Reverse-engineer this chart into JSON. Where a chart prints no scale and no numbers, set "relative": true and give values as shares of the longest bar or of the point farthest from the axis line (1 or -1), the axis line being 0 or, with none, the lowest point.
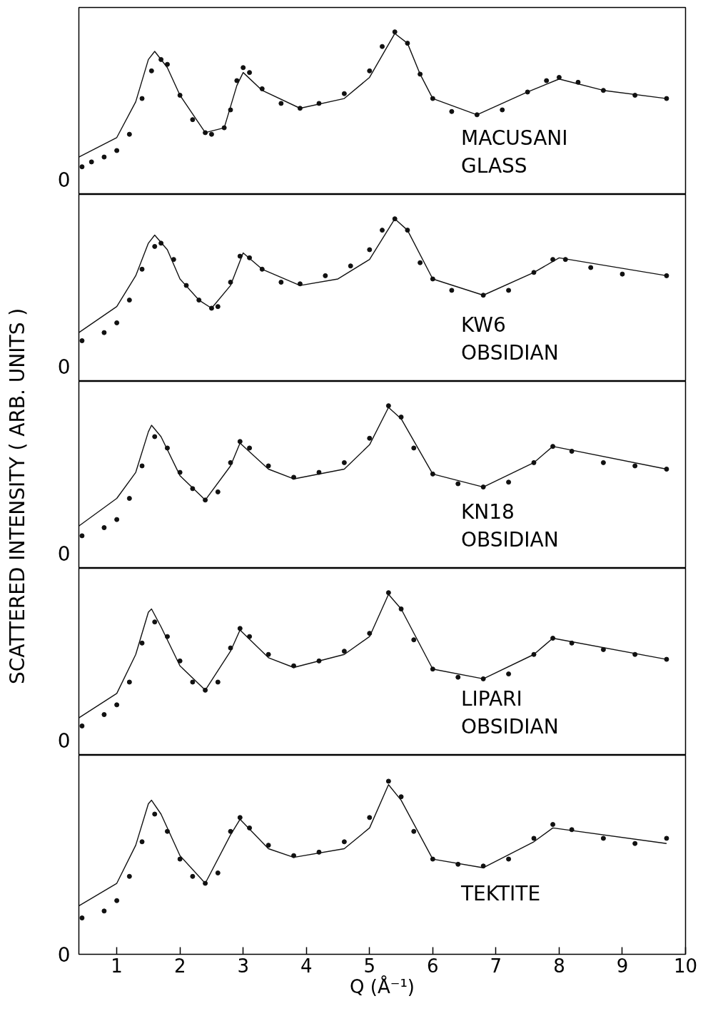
{
  "chart_data": [
    {
      "type": "scatter",
      "relative": true,
      "marker": "circle",
      "xlim": [
        0.4,
        10
      ],
      "xticks": [
        1,
        2,
        3,
        4,
        5,
        6,
        7,
        8,
        9,
        10
      ],
      "tick_labels": false,
      "annotations": [
        "0",
        "MACUSANI\nGLASS"
      ],
      "series": [
        {
          "color": "#111111",
          "x": [
            0.45,
            0.6,
            0.8,
            1.0,
            1.2,
            1.4,
            1.55,
            1.7,
            1.8,
            2.0,
            2.2,
            2.4,
            2.5,
            2.7,
            2.8,
            2.9,
            3.0,
            3.1,
            3.3,
            3.6,
            3.9,
            4.2,
            4.6,
            5.0,
            5.2,
            5.4,
            5.6,
            5.8,
            6.0,
            6.3,
            6.7,
            7.1,
            7.5,
            7.8,
            8.0,
            8.3,
            8.7,
            9.2,
            9.7
          ],
          "values": [
            0.17,
            0.2,
            0.23,
            0.27,
            0.37,
            0.59,
            0.76,
            0.83,
            0.8,
            0.61,
            0.46,
            0.38,
            0.37,
            0.41,
            0.52,
            0.7,
            0.78,
            0.75,
            0.65,
            0.56,
            0.53,
            0.56,
            0.62,
            0.76,
            0.91,
            1.0,
            0.93,
            0.74,
            0.59,
            0.51,
            0.49,
            0.52,
            0.63,
            0.7,
            0.72,
            0.69,
            0.64,
            0.61,
            0.59
          ]
        },
        {
          "type": "line",
          "marker": "none",
          "color": "#111111",
          "x": [
            0.4,
            1.0,
            1.3,
            1.5,
            1.6,
            1.8,
            2.0,
            2.4,
            2.7,
            2.9,
            3.0,
            3.3,
            3.9,
            4.6,
            5.0,
            5.4,
            5.6,
            5.8,
            6.0,
            6.7,
            7.5,
            8.0,
            8.7,
            9.7
          ],
          "values": [
            0.23,
            0.35,
            0.57,
            0.83,
            0.88,
            0.78,
            0.61,
            0.38,
            0.41,
            0.67,
            0.75,
            0.64,
            0.53,
            0.59,
            0.72,
            0.99,
            0.93,
            0.74,
            0.59,
            0.49,
            0.63,
            0.71,
            0.64,
            0.59
          ]
        }
      ]
    },
    {
      "type": "scatter",
      "relative": true,
      "marker": "circle",
      "xlim": [
        0.4,
        10
      ],
      "xticks": [
        1,
        2,
        3,
        4,
        5,
        6,
        7,
        8,
        9,
        10
      ],
      "tick_labels": false,
      "annotations": [
        "0",
        "KW6\nOBSIDIAN"
      ],
      "series": [
        {
          "color": "#111111",
          "x": [
            0.45,
            0.8,
            1.0,
            1.2,
            1.4,
            1.6,
            1.7,
            1.9,
            2.1,
            2.3,
            2.5,
            2.6,
            2.8,
            2.95,
            3.1,
            3.3,
            3.6,
            3.9,
            4.3,
            4.7,
            5.0,
            5.2,
            5.4,
            5.6,
            5.8,
            6.0,
            6.3,
            6.8,
            7.2,
            7.6,
            7.9,
            8.1,
            8.5,
            9.0,
            9.7
          ],
          "values": [
            0.25,
            0.3,
            0.36,
            0.5,
            0.69,
            0.83,
            0.85,
            0.75,
            0.59,
            0.5,
            0.45,
            0.46,
            0.61,
            0.77,
            0.76,
            0.69,
            0.61,
            0.6,
            0.65,
            0.71,
            0.81,
            0.93,
            1.0,
            0.93,
            0.73,
            0.63,
            0.56,
            0.53,
            0.56,
            0.67,
            0.75,
            0.75,
            0.7,
            0.66,
            0.65
          ]
        },
        {
          "type": "line",
          "marker": "none",
          "color": "#111111",
          "x": [
            0.4,
            1.0,
            1.3,
            1.5,
            1.6,
            1.8,
            2.0,
            2.3,
            2.5,
            2.8,
            3.0,
            3.3,
            3.9,
            4.5,
            5.0,
            5.4,
            5.6,
            6.0,
            6.8,
            7.6,
            8.0,
            9.7
          ],
          "values": [
            0.3,
            0.46,
            0.65,
            0.85,
            0.9,
            0.81,
            0.63,
            0.5,
            0.45,
            0.59,
            0.79,
            0.69,
            0.59,
            0.63,
            0.75,
            1.0,
            0.93,
            0.63,
            0.53,
            0.67,
            0.76,
            0.65
          ]
        }
      ]
    },
    {
      "type": "scatter",
      "relative": true,
      "marker": "circle",
      "xlim": [
        0.4,
        10
      ],
      "xticks": [
        1,
        2,
        3,
        4,
        5,
        6,
        7,
        8,
        9,
        10
      ],
      "tick_labels": false,
      "ylabel": "SCATTERED INTENSITY  ( ARB. UNITS )",
      "annotations": [
        "0",
        "KN18\nOBSIDIAN"
      ],
      "series": [
        {
          "color": "#111111",
          "x": [
            0.45,
            0.8,
            1.0,
            1.2,
            1.4,
            1.6,
            1.8,
            2.0,
            2.2,
            2.4,
            2.6,
            2.8,
            2.95,
            3.1,
            3.4,
            3.8,
            4.2,
            4.6,
            5.0,
            5.3,
            5.5,
            5.7,
            6.0,
            6.4,
            6.8,
            7.2,
            7.6,
            7.9,
            8.2,
            8.7,
            9.2,
            9.7
          ],
          "values": [
            0.2,
            0.25,
            0.3,
            0.43,
            0.63,
            0.81,
            0.74,
            0.59,
            0.49,
            0.42,
            0.47,
            0.65,
            0.78,
            0.74,
            0.63,
            0.56,
            0.59,
            0.65,
            0.8,
            1.0,
            0.93,
            0.74,
            0.58,
            0.52,
            0.5,
            0.53,
            0.65,
            0.75,
            0.72,
            0.65,
            0.63,
            0.61
          ]
        },
        {
          "type": "line",
          "marker": "none",
          "color": "#111111",
          "x": [
            0.4,
            1.0,
            1.3,
            1.5,
            1.55,
            1.7,
            2.0,
            2.4,
            2.8,
            2.95,
            3.4,
            3.8,
            4.6,
            5.0,
            5.3,
            5.5,
            6.0,
            6.8,
            7.6,
            7.9,
            9.7
          ],
          "values": [
            0.26,
            0.43,
            0.59,
            0.84,
            0.88,
            0.81,
            0.57,
            0.42,
            0.63,
            0.77,
            0.61,
            0.55,
            0.61,
            0.76,
            0.99,
            0.92,
            0.58,
            0.5,
            0.65,
            0.75,
            0.61
          ]
        }
      ]
    },
    {
      "type": "scatter",
      "relative": true,
      "marker": "circle",
      "xlim": [
        0.4,
        10
      ],
      "xticks": [
        1,
        2,
        3,
        4,
        5,
        6,
        7,
        8,
        9,
        10
      ],
      "tick_labels": false,
      "annotations": [
        "0",
        "LIPARI\nOBSIDIAN"
      ],
      "series": [
        {
          "color": "#111111",
          "x": [
            0.45,
            0.8,
            1.0,
            1.2,
            1.4,
            1.6,
            1.8,
            2.0,
            2.2,
            2.4,
            2.6,
            2.8,
            2.95,
            3.1,
            3.4,
            3.8,
            4.2,
            4.6,
            5.0,
            5.3,
            5.5,
            5.7,
            6.0,
            6.4,
            6.8,
            7.2,
            7.6,
            7.9,
            8.2,
            8.7,
            9.2,
            9.7
          ],
          "values": [
            0.18,
            0.25,
            0.31,
            0.45,
            0.69,
            0.82,
            0.73,
            0.58,
            0.45,
            0.4,
            0.45,
            0.66,
            0.78,
            0.73,
            0.62,
            0.55,
            0.58,
            0.64,
            0.75,
            1.0,
            0.9,
            0.71,
            0.53,
            0.48,
            0.47,
            0.5,
            0.62,
            0.72,
            0.69,
            0.65,
            0.62,
            0.59
          ]
        },
        {
          "type": "line",
          "marker": "none",
          "color": "#111111",
          "x": [
            0.4,
            1.0,
            1.3,
            1.5,
            1.55,
            1.7,
            2.0,
            2.4,
            2.8,
            2.95,
            3.4,
            3.8,
            4.6,
            5.0,
            5.3,
            5.5,
            6.0,
            6.8,
            7.6,
            7.9,
            9.7
          ],
          "values": [
            0.23,
            0.38,
            0.62,
            0.88,
            0.9,
            0.79,
            0.55,
            0.4,
            0.64,
            0.77,
            0.6,
            0.54,
            0.62,
            0.73,
            0.99,
            0.9,
            0.53,
            0.47,
            0.62,
            0.72,
            0.59
          ]
        }
      ]
    },
    {
      "type": "scatter",
      "relative": true,
      "marker": "circle",
      "xlim": [
        0.4,
        10
      ],
      "xticks": [
        1,
        2,
        3,
        4,
        5,
        6,
        7,
        8,
        9,
        10
      ],
      "tick_labels": "x",
      "xlabel": "Q (Å⁻¹)",
      "annotations": [
        "0",
        "TEKTITE"
      ],
      "series": [
        {
          "color": "#111111",
          "x": [
            0.45,
            0.8,
            1.0,
            1.2,
            1.4,
            1.6,
            1.8,
            2.0,
            2.2,
            2.4,
            2.6,
            2.8,
            2.95,
            3.1,
            3.4,
            3.8,
            4.2,
            4.6,
            5.0,
            5.3,
            5.5,
            5.7,
            6.0,
            6.4,
            6.8,
            7.2,
            7.6,
            7.9,
            8.2,
            8.7,
            9.2,
            9.7
          ],
          "values": [
            0.21,
            0.25,
            0.31,
            0.45,
            0.65,
            0.81,
            0.71,
            0.55,
            0.45,
            0.41,
            0.47,
            0.71,
            0.79,
            0.73,
            0.63,
            0.57,
            0.59,
            0.65,
            0.79,
            1.0,
            0.91,
            0.71,
            0.55,
            0.52,
            0.51,
            0.55,
            0.67,
            0.75,
            0.72,
            0.67,
            0.64,
            0.67
          ]
        },
        {
          "type": "line",
          "marker": "none",
          "color": "#111111",
          "x": [
            0.4,
            1.0,
            1.3,
            1.5,
            1.55,
            1.7,
            2.0,
            2.4,
            2.8,
            2.95,
            3.4,
            3.8,
            4.6,
            5.0,
            5.3,
            5.5,
            6.0,
            6.8,
            7.6,
            7.9,
            9.7
          ],
          "values": [
            0.28,
            0.41,
            0.63,
            0.87,
            0.89,
            0.81,
            0.57,
            0.41,
            0.69,
            0.78,
            0.61,
            0.56,
            0.61,
            0.73,
            0.98,
            0.89,
            0.55,
            0.5,
            0.65,
            0.73,
            0.64
          ]
        }
      ]
    }
  ]
}
